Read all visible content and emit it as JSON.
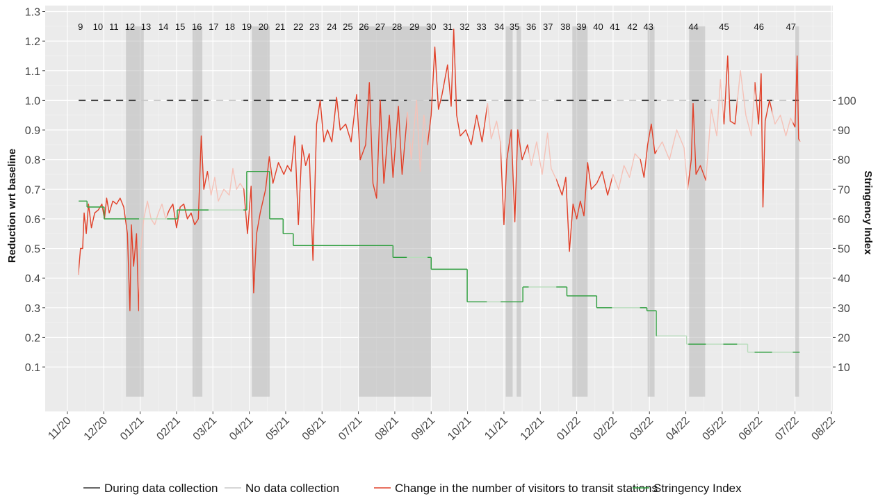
{
  "chart_data": {
    "type": "line",
    "y_label": "Reduction wrt baseline",
    "y2_label": "Stringency Index",
    "xlim": [
      -0.61,
      21.04
    ],
    "ylim": [
      -0.05,
      1.32
    ],
    "y2lim": [
      -5,
      132
    ],
    "xticks": [
      {
        "value": 0,
        "label": "11/20"
      },
      {
        "value": 1,
        "label": "12/20"
      },
      {
        "value": 2,
        "label": "01/21"
      },
      {
        "value": 3,
        "label": "02/21"
      },
      {
        "value": 4,
        "label": "03/21"
      },
      {
        "value": 5,
        "label": "04/21"
      },
      {
        "value": 6,
        "label": "05/21"
      },
      {
        "value": 7,
        "label": "06/21"
      },
      {
        "value": 8,
        "label": "07/21"
      },
      {
        "value": 9,
        "label": "08/21"
      },
      {
        "value": 10,
        "label": "09/21"
      },
      {
        "value": 11,
        "label": "10/21"
      },
      {
        "value": 12,
        "label": "11/21"
      },
      {
        "value": 13,
        "label": "12/21"
      },
      {
        "value": 14,
        "label": "01/22"
      },
      {
        "value": 15,
        "label": "02/22"
      },
      {
        "value": 16,
        "label": "03/22"
      },
      {
        "value": 17,
        "label": "04/22"
      },
      {
        "value": 18,
        "label": "05/22"
      },
      {
        "value": 19,
        "label": "06/22"
      },
      {
        "value": 20,
        "label": "07/22"
      },
      {
        "value": 21,
        "label": "08/22"
      }
    ],
    "yticks": [
      0.1,
      0.2,
      0.3,
      0.4,
      0.5,
      0.6,
      0.7,
      0.8,
      0.9,
      {
        "value": 1.0,
        "label": "1.0"
      },
      1.1,
      1.2,
      1.3
    ],
    "y2ticks": [
      10,
      20,
      30,
      40,
      50,
      60,
      70,
      80,
      90,
      100
    ],
    "grid": true,
    "reference_line": 1.0,
    "shade_range": [
      0,
      1.25
    ],
    "shaded_periods": [
      [
        1.61,
        2.1
      ],
      [
        3.44,
        3.71
      ],
      [
        5.07,
        5.56
      ],
      [
        8.01,
        10.0
      ],
      [
        12.05,
        12.24
      ],
      [
        12.35,
        12.47
      ],
      [
        13.88,
        14.3
      ],
      [
        15.95,
        16.14
      ],
      [
        17.09,
        17.53
      ],
      [
        20.0,
        20.11
      ]
    ],
    "collection_periods": [
      [
        0.31,
        1.97
      ],
      [
        2.74,
        3.88
      ],
      [
        4.84,
        9.33
      ],
      [
        9.9,
        11.53
      ],
      [
        11.91,
        12.68
      ],
      [
        13.44,
        14.97
      ],
      [
        15.74,
        16.2
      ],
      [
        17.07,
        17.55
      ],
      [
        18.03,
        18.41
      ],
      [
        18.89,
        19.37
      ],
      [
        19.94,
        20.13
      ]
    ],
    "wave_label_y": 1.25,
    "wave_labels": [
      {
        "label": "9",
        "x": 0.36
      },
      {
        "label": "10",
        "x": 0.84
      },
      {
        "label": "11",
        "x": 1.28
      },
      {
        "label": "12",
        "x": 1.72
      },
      {
        "label": "13",
        "x": 2.16
      },
      {
        "label": "14",
        "x": 2.64
      },
      {
        "label": "15",
        "x": 3.1
      },
      {
        "label": "16",
        "x": 3.56
      },
      {
        "label": "17",
        "x": 4.02
      },
      {
        "label": "18",
        "x": 4.47
      },
      {
        "label": "19",
        "x": 4.93
      },
      {
        "label": "20",
        "x": 5.39
      },
      {
        "label": "21",
        "x": 5.85
      },
      {
        "label": "22",
        "x": 6.35
      },
      {
        "label": "23",
        "x": 6.79
      },
      {
        "label": "24",
        "x": 7.27
      },
      {
        "label": "25",
        "x": 7.71
      },
      {
        "label": "26",
        "x": 8.15
      },
      {
        "label": "27",
        "x": 8.6
      },
      {
        "label": "28",
        "x": 9.06
      },
      {
        "label": "29",
        "x": 9.54
      },
      {
        "label": "30",
        "x": 10.0
      },
      {
        "label": "31",
        "x": 10.46
      },
      {
        "label": "32",
        "x": 10.92
      },
      {
        "label": "33",
        "x": 11.38
      },
      {
        "label": "34",
        "x": 11.87
      },
      {
        "label": "35",
        "x": 12.29
      },
      {
        "label": "36",
        "x": 12.75
      },
      {
        "label": "37",
        "x": 13.21
      },
      {
        "label": "38",
        "x": 13.69
      },
      {
        "label": "39",
        "x": 14.13
      },
      {
        "label": "40",
        "x": 14.59
      },
      {
        "label": "41",
        "x": 15.05
      },
      {
        "label": "42",
        "x": 15.53
      },
      {
        "label": "43",
        "x": 15.97
      },
      {
        "label": "44",
        "x": 17.21
      },
      {
        "label": "45",
        "x": 18.05
      },
      {
        "label": "46",
        "x": 19.01
      },
      {
        "label": "47",
        "x": 19.89
      }
    ],
    "legend": [
      {
        "name": "During data collection",
        "color": "#333333"
      },
      {
        "name": "No data collection",
        "color": "#c8c8c8"
      }
    ],
    "series": [
      {
        "name": "Change in the number of visitors to transit stations",
        "color": "#e0412a",
        "faint_color": "#f5c2b8",
        "x": [
          0.3,
          0.36,
          0.42,
          0.46,
          0.52,
          0.58,
          0.66,
          0.75,
          0.85,
          0.95,
          1.02,
          1.08,
          1.15,
          1.25,
          1.35,
          1.45,
          1.55,
          1.65,
          1.72,
          1.76,
          1.82,
          1.9,
          1.96,
          2.02,
          2.1,
          2.2,
          2.3,
          2.4,
          2.5,
          2.6,
          2.7,
          2.8,
          2.9,
          3.0,
          3.1,
          3.2,
          3.3,
          3.4,
          3.5,
          3.6,
          3.68,
          3.75,
          3.85,
          3.95,
          4.05,
          4.15,
          4.3,
          4.45,
          4.55,
          4.65,
          4.75,
          4.85,
          4.95,
          5.05,
          5.12,
          5.2,
          5.3,
          5.45,
          5.55,
          5.65,
          5.8,
          5.95,
          6.05,
          6.15,
          6.25,
          6.35,
          6.45,
          6.55,
          6.65,
          6.75,
          6.85,
          6.95,
          7.05,
          7.15,
          7.27,
          7.4,
          7.5,
          7.65,
          7.8,
          7.95,
          8.05,
          8.2,
          8.3,
          8.4,
          8.5,
          8.6,
          8.7,
          8.85,
          8.95,
          9.1,
          9.2,
          9.35,
          9.45,
          9.6,
          9.7,
          9.8,
          9.9,
          10.0,
          10.1,
          10.2,
          10.3,
          10.45,
          10.55,
          10.62,
          10.7,
          10.8,
          10.95,
          11.1,
          11.25,
          11.4,
          11.55,
          11.65,
          11.8,
          11.9,
          12.0,
          12.08,
          12.2,
          12.3,
          12.38,
          12.5,
          12.65,
          12.75,
          12.9,
          13.05,
          13.2,
          13.3,
          13.45,
          13.6,
          13.7,
          13.8,
          13.9,
          14.0,
          14.1,
          14.2,
          14.3,
          14.4,
          14.55,
          14.7,
          14.85,
          15.0,
          15.15,
          15.3,
          15.45,
          15.6,
          15.75,
          15.85,
          15.95,
          16.05,
          16.15,
          16.35,
          16.55,
          16.75,
          16.95,
          17.05,
          17.15,
          17.2,
          17.28,
          17.4,
          17.55,
          17.7,
          17.85,
          17.95,
          18.05,
          18.15,
          18.22,
          18.35,
          18.5,
          18.65,
          18.8,
          18.9,
          19.0,
          19.07,
          19.12,
          19.18,
          19.3,
          19.45,
          19.6,
          19.75,
          19.88,
          20.0,
          20.06,
          20.1,
          20.15
        ],
        "values": [
          0.41,
          0.5,
          0.5,
          0.62,
          0.55,
          0.65,
          0.57,
          0.62,
          0.63,
          0.65,
          0.6,
          0.67,
          0.62,
          0.66,
          0.65,
          0.67,
          0.64,
          0.55,
          0.29,
          0.58,
          0.44,
          0.55,
          0.29,
          0.5,
          0.6,
          0.66,
          0.6,
          0.58,
          0.62,
          0.65,
          0.6,
          0.63,
          0.65,
          0.57,
          0.64,
          0.65,
          0.6,
          0.62,
          0.58,
          0.6,
          0.88,
          0.7,
          0.76,
          0.68,
          0.74,
          0.66,
          0.7,
          0.68,
          0.77,
          0.7,
          0.72,
          0.7,
          0.55,
          0.71,
          0.35,
          0.55,
          0.62,
          0.7,
          0.81,
          0.72,
          0.79,
          0.75,
          0.78,
          0.76,
          0.88,
          0.58,
          0.85,
          0.78,
          0.82,
          0.46,
          0.92,
          1.0,
          0.86,
          0.9,
          0.86,
          1.01,
          0.9,
          0.92,
          0.86,
          1.02,
          0.8,
          0.85,
          1.06,
          0.72,
          0.67,
          1.0,
          0.72,
          0.95,
          0.74,
          0.98,
          0.75,
          0.96,
          0.8,
          1.0,
          0.76,
          0.95,
          0.85,
          0.95,
          1.18,
          0.97,
          1.02,
          1.12,
          0.98,
          1.24,
          0.95,
          0.88,
          0.9,
          0.85,
          0.95,
          0.86,
          0.99,
          0.87,
          0.93,
          0.86,
          0.58,
          0.8,
          0.9,
          0.59,
          0.9,
          0.8,
          0.85,
          0.78,
          0.86,
          0.75,
          0.89,
          0.77,
          0.73,
          0.68,
          0.74,
          0.49,
          0.65,
          0.6,
          0.66,
          0.61,
          0.79,
          0.7,
          0.72,
          0.76,
          0.68,
          0.75,
          0.7,
          0.78,
          0.74,
          0.82,
          0.8,
          0.74,
          0.85,
          0.92,
          0.82,
          0.86,
          0.8,
          0.9,
          0.84,
          0.7,
          0.8,
          0.99,
          0.75,
          0.78,
          0.73,
          0.97,
          0.88,
          1.07,
          0.92,
          1.15,
          0.93,
          0.92,
          1.1,
          0.95,
          0.88,
          1.06,
          0.92,
          1.09,
          0.64,
          0.93,
          1.0,
          0.92,
          0.95,
          0.88,
          0.94,
          0.91,
          1.15,
          0.87,
          0.86
        ]
      },
      {
        "name": "Stringency Index",
        "color": "#2e9e3e",
        "faint_color": "#b9dcbc",
        "axis": "y2",
        "step": true,
        "x": [
          0.31,
          0.54,
          1.01,
          3.02,
          4.93,
          5.56,
          5.93,
          6.21,
          8.95,
          10.0,
          10.99,
          12.52,
          13.73,
          14.55,
          15.93,
          16.19,
          17.02,
          18.7,
          20.13
        ],
        "values": [
          66,
          64,
          60,
          63,
          76,
          60,
          55,
          51,
          47,
          43,
          32,
          37,
          34,
          30,
          29,
          20.5,
          17.7,
          15,
          15
        ]
      }
    ]
  }
}
